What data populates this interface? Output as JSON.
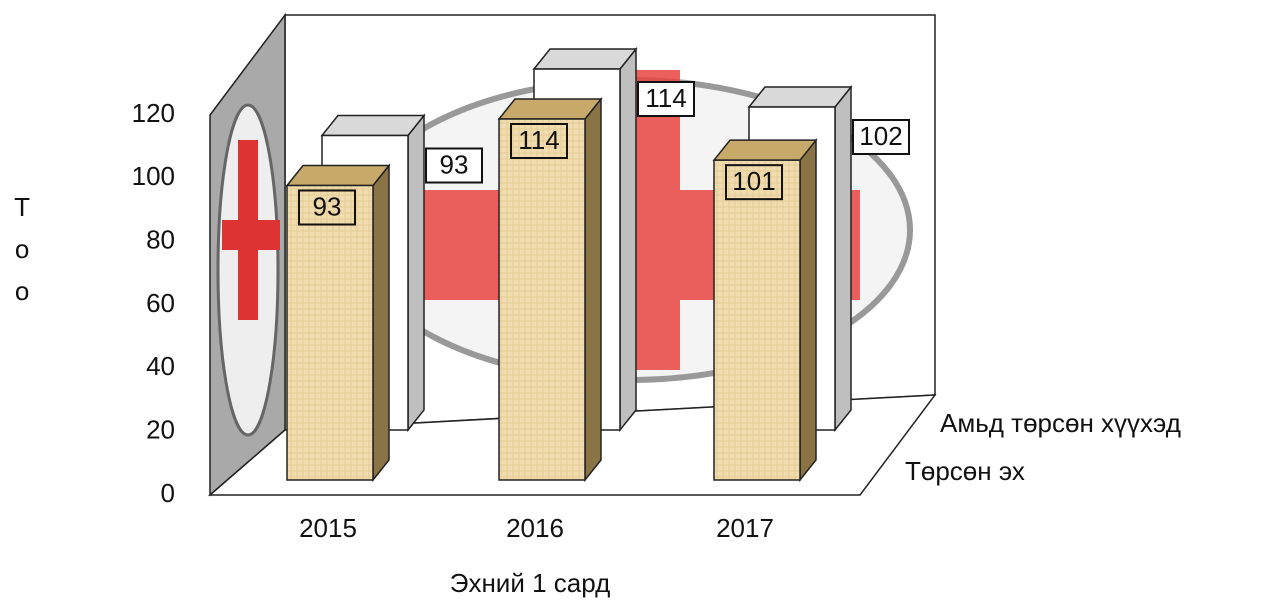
{
  "chart_data": {
    "type": "bar3d",
    "categories": [
      "2015",
      "2016",
      "2017"
    ],
    "series": [
      {
        "name": "Төрсөн эх",
        "color": "#f0dcae",
        "values": [
          93,
          114,
          101
        ]
      },
      {
        "name": "Амьд төрсөн хүүхэд",
        "color": "#ffffff",
        "values": [
          93,
          114,
          102
        ]
      }
    ],
    "xlabel": "Эхний 1 сард",
    "ylabel": "Тоо",
    "ylim": [
      0,
      120
    ],
    "yticks": [
      0,
      20,
      40,
      60,
      80,
      100,
      120
    ]
  }
}
